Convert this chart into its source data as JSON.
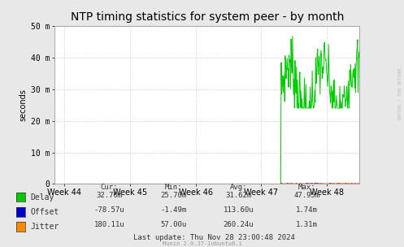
{
  "title": "NTP timing statistics for system peer - by month",
  "ylabel": "seconds",
  "background_color": "#e8e8e8",
  "plot_bg_color": "#ffffff",
  "ylim": [
    0,
    50
  ],
  "ytick_labels": [
    "0",
    "10 m",
    "20 m",
    "30 m",
    "40 m",
    "50 m"
  ],
  "ytick_values": [
    0,
    10,
    20,
    30,
    40,
    50
  ],
  "week_labels": [
    "Week 44",
    "Week 45",
    "Week 46",
    "Week 47",
    "Week 48"
  ],
  "delay_color": "#00cc00",
  "offset_color": "#0000cc",
  "jitter_color": "#ff8800",
  "legend_labels": [
    "Delay",
    "Offset",
    "Jitter"
  ],
  "stats_header": [
    "Cur:",
    "Min:",
    "Avg:",
    "Max:"
  ],
  "stats_delay": [
    "32.70m",
    "25.70m",
    "31.62m",
    "47.95m"
  ],
  "stats_offset": [
    "-78.57u",
    "-1.49m",
    "113.60u",
    "1.74m"
  ],
  "stats_jitter": [
    "180.11u",
    "57.00u",
    "260.24u",
    "1.31m"
  ],
  "last_update": "Last update: Thu Nov 28 23:00:48 2024",
  "munin_label": "Munin 2.0.37-1ubuntu0.1",
  "rrdtool_label": "RRDTOOL / TOBI OETIKER",
  "title_fontsize": 10,
  "axis_fontsize": 7,
  "legend_fontsize": 7,
  "stats_fontsize": 6.5
}
